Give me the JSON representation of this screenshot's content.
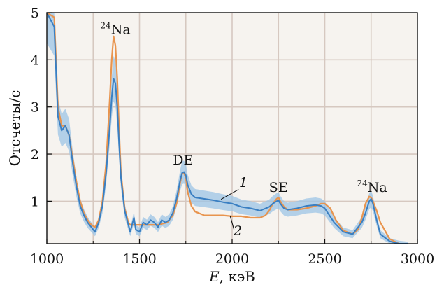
{
  "chart_data": {
    "type": "line",
    "xlabel_var": "E",
    "xlabel_unit": ", кэВ",
    "ylabel": "Отсчеты/с",
    "xlim": [
      1000,
      3000
    ],
    "ylim": [
      0.1,
      5
    ],
    "xticks": [
      1000,
      1500,
      2000,
      2500,
      3000
    ],
    "yticks": [
      1,
      2,
      3,
      4,
      5
    ],
    "minor_xticks": [
      1250,
      1750,
      2250,
      2750
    ],
    "grid": true,
    "colors": {
      "series1": "#3a7fc2",
      "series1_band": "#9cc4e6",
      "series2": "#e8944e"
    },
    "series": [
      {
        "name": "1",
        "x": [
          1000,
          1040,
          1060,
          1080,
          1100,
          1120,
          1140,
          1160,
          1180,
          1200,
          1220,
          1240,
          1260,
          1280,
          1300,
          1320,
          1340,
          1350,
          1360,
          1370,
          1380,
          1390,
          1400,
          1420,
          1440,
          1450,
          1460,
          1470,
          1480,
          1500,
          1520,
          1540,
          1560,
          1580,
          1600,
          1620,
          1640,
          1660,
          1680,
          1700,
          1720,
          1730,
          1740,
          1750,
          1760,
          1780,
          1800,
          1850,
          1900,
          1950,
          2000,
          2050,
          2100,
          2150,
          2200,
          2220,
          2240,
          2250,
          2260,
          2280,
          2300,
          2350,
          2400,
          2450,
          2480,
          2500,
          2550,
          2600,
          2650,
          2700,
          2720,
          2740,
          2750,
          2760,
          2780,
          2800,
          2850,
          2900,
          2950
        ],
        "y": [
          5,
          4.7,
          2.8,
          2.5,
          2.6,
          2.4,
          1.8,
          1.3,
          0.9,
          0.7,
          0.55,
          0.45,
          0.35,
          0.55,
          0.9,
          1.6,
          2.6,
          3.2,
          3.6,
          3.5,
          3.0,
          2.2,
          1.5,
          0.8,
          0.5,
          0.35,
          0.5,
          0.65,
          0.4,
          0.35,
          0.55,
          0.5,
          0.6,
          0.55,
          0.45,
          0.6,
          0.55,
          0.6,
          0.75,
          1.05,
          1.45,
          1.6,
          1.62,
          1.55,
          1.35,
          1.15,
          1.08,
          1.05,
          1.02,
          0.98,
          0.95,
          0.88,
          0.85,
          0.8,
          0.88,
          0.95,
          1.0,
          1.02,
          0.95,
          0.85,
          0.82,
          0.85,
          0.9,
          0.92,
          0.9,
          0.85,
          0.55,
          0.35,
          0.3,
          0.55,
          0.75,
          1.0,
          1.05,
          0.95,
          0.6,
          0.3,
          0.15,
          0.1,
          0.08
        ]
      },
      {
        "name": "2",
        "x": [
          1000,
          1040,
          1060,
          1080,
          1100,
          1120,
          1140,
          1160,
          1180,
          1200,
          1220,
          1240,
          1260,
          1280,
          1300,
          1320,
          1340,
          1350,
          1360,
          1370,
          1380,
          1390,
          1400,
          1420,
          1440,
          1450,
          1460,
          1480,
          1500,
          1550,
          1600,
          1650,
          1680,
          1700,
          1720,
          1730,
          1740,
          1750,
          1760,
          1780,
          1800,
          1850,
          1900,
          1950,
          2000,
          2050,
          2100,
          2150,
          2180,
          2200,
          2220,
          2240,
          2250,
          2260,
          2280,
          2300,
          2350,
          2400,
          2450,
          2480,
          2500,
          2530,
          2560,
          2600,
          2650,
          2680,
          2700,
          2720,
          2740,
          2750,
          2760,
          2780,
          2800,
          2850,
          2900
        ],
        "y": [
          5,
          4.9,
          3.0,
          2.6,
          2.6,
          2.4,
          1.9,
          1.4,
          1.0,
          0.75,
          0.6,
          0.5,
          0.45,
          0.6,
          1.0,
          1.8,
          3.2,
          4.0,
          4.5,
          4.3,
          3.6,
          2.5,
          1.6,
          0.85,
          0.55,
          0.5,
          0.5,
          0.5,
          0.5,
          0.5,
          0.5,
          0.55,
          0.7,
          0.95,
          1.4,
          1.58,
          1.6,
          1.5,
          1.2,
          0.9,
          0.78,
          0.7,
          0.7,
          0.7,
          0.68,
          0.68,
          0.65,
          0.65,
          0.7,
          0.8,
          0.95,
          1.05,
          1.08,
          1.0,
          0.88,
          0.82,
          0.82,
          0.85,
          0.9,
          0.95,
          0.95,
          0.85,
          0.6,
          0.38,
          0.3,
          0.4,
          0.65,
          0.95,
          1.1,
          1.08,
          1.0,
          0.8,
          0.55,
          0.2,
          0.05
        ]
      }
    ],
    "annotations": [
      {
        "sup": "24",
        "text": "Na",
        "x": 1370,
        "y": 4.55
      },
      {
        "sup": "",
        "text": "DE",
        "x": 1735,
        "y": 1.78
      },
      {
        "sup": "",
        "text": "SE",
        "x": 2250,
        "y": 1.2
      },
      {
        "sup": "24",
        "text": "Na",
        "x": 2755,
        "y": 1.2
      }
    ],
    "curve_labels": [
      {
        "text": "1",
        "x": 2060,
        "y": 1.3,
        "lx1": 1940,
        "ly1": 1.04,
        "lx2": 2035,
        "ly2": 1.25
      },
      {
        "text": "2",
        "x": 2030,
        "y": 0.28,
        "lx1": 1990,
        "ly1": 0.68,
        "lx2": 2010,
        "ly2": 0.4
      }
    ]
  }
}
